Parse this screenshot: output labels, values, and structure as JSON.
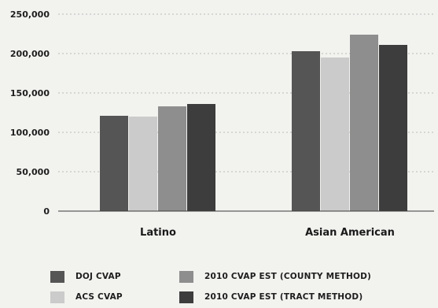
{
  "chart_data": {
    "type": "bar",
    "categories": [
      "Latino",
      "Asian American"
    ],
    "series": [
      {
        "name": "DOJ CVAP",
        "values": [
          121000,
          203000
        ],
        "color": "#555555"
      },
      {
        "name": "ACS CVAP",
        "values": [
          120000,
          195000
        ],
        "color": "#cbcbcb"
      },
      {
        "name": "2010 CVAP EST (COUNTY METHOD)",
        "values": [
          133000,
          224000
        ],
        "color": "#8e8e8e"
      },
      {
        "name": "2010 CVAP EST (TRACT METHOD)",
        "values": [
          136000,
          211000
        ],
        "color": "#3d3d3d"
      }
    ],
    "ylim": [
      0,
      250000
    ],
    "yticks": [
      "0",
      "50,000",
      "100,000",
      "150,000",
      "200,000",
      "250,000"
    ],
    "ytick_values": [
      0,
      50000,
      100000,
      150000,
      200000,
      250000
    ],
    "grid": "dotted horizontal",
    "legend_position": "bottom",
    "title": "",
    "xlabel": "",
    "ylabel": ""
  }
}
